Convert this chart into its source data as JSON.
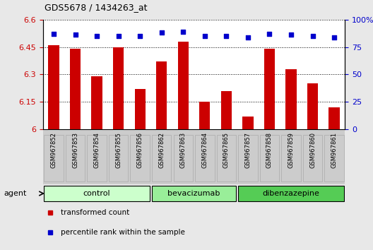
{
  "title": "GDS5678 / 1434263_at",
  "samples": [
    "GSM967852",
    "GSM967853",
    "GSM967854",
    "GSM967855",
    "GSM967856",
    "GSM967862",
    "GSM967863",
    "GSM967864",
    "GSM967865",
    "GSM967857",
    "GSM967858",
    "GSM967859",
    "GSM967860",
    "GSM967861"
  ],
  "transformed_count": [
    6.46,
    6.44,
    6.29,
    6.45,
    6.22,
    6.37,
    6.48,
    6.15,
    6.21,
    6.07,
    6.44,
    6.33,
    6.25,
    6.12
  ],
  "percentile_rank": [
    87,
    86,
    85,
    85,
    85,
    88,
    89,
    85,
    85,
    84,
    87,
    86,
    85,
    84
  ],
  "groups": [
    {
      "label": "control",
      "start": 0,
      "end": 5,
      "color": "#ccffcc"
    },
    {
      "label": "bevacizumab",
      "start": 5,
      "end": 9,
      "color": "#99ee99"
    },
    {
      "label": "dibenzazepine",
      "start": 9,
      "end": 14,
      "color": "#55cc55"
    }
  ],
  "ylim_left": [
    6.0,
    6.6
  ],
  "ylim_right": [
    0,
    100
  ],
  "yticks_left": [
    6.0,
    6.15,
    6.3,
    6.45,
    6.6
  ],
  "yticks_right": [
    0,
    25,
    50,
    75,
    100
  ],
  "ytick_labels_left": [
    "6",
    "6.15",
    "6.3",
    "6.45",
    "6.6"
  ],
  "ytick_labels_right": [
    "0",
    "25",
    "50",
    "75",
    "100%"
  ],
  "bar_color": "#cc0000",
  "dot_color": "#0000cc",
  "fig_bg_color": "#e8e8e8",
  "plot_bg_color": "#ffffff",
  "tick_bg_color": "#cccccc",
  "legend_items": [
    {
      "label": "transformed count",
      "color": "#cc0000"
    },
    {
      "label": "percentile rank within the sample",
      "color": "#0000cc"
    }
  ],
  "agent_label": "agent",
  "bar_width": 0.5
}
